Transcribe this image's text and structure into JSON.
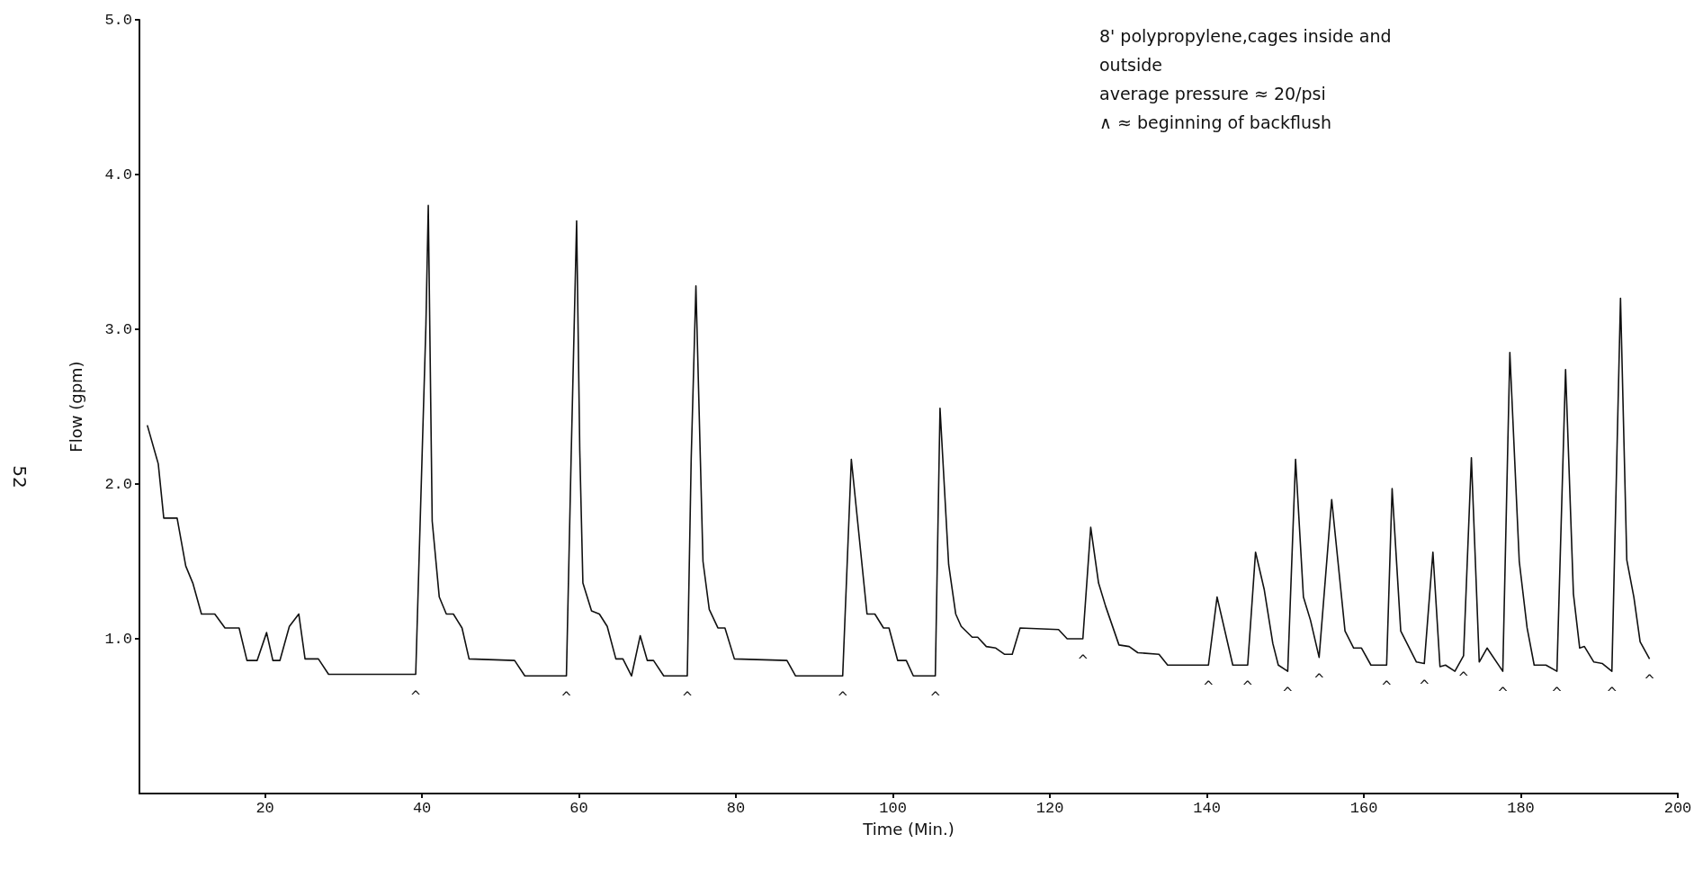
{
  "chart_data": {
    "type": "line",
    "xlabel": "Time (Min.)",
    "ylabel": "Flow (gpm)",
    "xlim": [
      4,
      200
    ],
    "xticks": [
      20,
      40,
      60,
      80,
      100,
      120,
      140,
      160,
      180,
      200
    ],
    "ylim": [
      0,
      5
    ],
    "yticks": [
      {
        "value": 1,
        "label": "1.0"
      },
      {
        "value": 2,
        "label": "2.0"
      },
      {
        "value": 3,
        "label": "3.0"
      },
      {
        "value": 4,
        "label": "4.0"
      },
      {
        "value": 5,
        "label": "5.0"
      }
    ],
    "grid": false,
    "marker": "none",
    "line_style": "solid",
    "series": [
      {
        "color": "#111111",
        "x": [
          5.0,
          6.4,
          7.1,
          8.8,
          9.9,
          10.8,
          11.9,
          13.6,
          14.9,
          16.7,
          17.7,
          19.0,
          20.2,
          21.0,
          21.9,
          23.1,
          24.3,
          25.1,
          26.8,
          28.1,
          39.2,
          40.5,
          40.8,
          41.3,
          42.2,
          43.1,
          44.0,
          45.1,
          46.0,
          51.8,
          53.1,
          58.4,
          59.0,
          59.7,
          60.1,
          60.5,
          61.6,
          62.6,
          63.6,
          64.7,
          65.6,
          66.7,
          67.8,
          68.7,
          69.5,
          70.8,
          73.8,
          74.3,
          74.9,
          75.8,
          76.6,
          77.7,
          78.6,
          79.8,
          86.5,
          87.6,
          93.6,
          94.7,
          96.7,
          97.7,
          98.8,
          99.5,
          100.6,
          101.7,
          102.6,
          105.4,
          106.0,
          107.1,
          108.0,
          108.7,
          110.1,
          110.8,
          111.9,
          113.1,
          114.2,
          115.2,
          116.2,
          121.1,
          122.2,
          124.2,
          125.2,
          126.2,
          127.1,
          128.8,
          130.1,
          131.2,
          133.9,
          135.0,
          140.2,
          141.3,
          143.3,
          145.2,
          146.2,
          147.3,
          148.4,
          149.1,
          150.3,
          151.3,
          152.3,
          153.2,
          154.3,
          155.9,
          156.7,
          157.6,
          158.7,
          159.7,
          160.9,
          162.9,
          163.6,
          164.7,
          166.7,
          167.7,
          168.8,
          169.7,
          170.4,
          171.6,
          172.7,
          173.7,
          174.7,
          175.7,
          177.7,
          178.6,
          179.8,
          180.8,
          181.7,
          183.2,
          184.6,
          185.7,
          186.7,
          187.5,
          188.1,
          189.3,
          190.4,
          191.6,
          192.7,
          193.5,
          194.4,
          195.2,
          196.4
        ],
        "values": [
          2.38,
          2.13,
          1.78,
          1.78,
          1.47,
          1.36,
          1.16,
          1.16,
          1.07,
          1.07,
          0.86,
          0.86,
          1.04,
          0.86,
          0.86,
          1.08,
          1.16,
          0.87,
          0.87,
          0.77,
          0.77,
          3.03,
          3.8,
          1.76,
          1.27,
          1.16,
          1.16,
          1.07,
          0.87,
          0.86,
          0.76,
          0.76,
          2.17,
          3.7,
          2.22,
          1.36,
          1.18,
          1.16,
          1.08,
          0.87,
          0.87,
          0.76,
          1.02,
          0.86,
          0.86,
          0.76,
          0.76,
          2.17,
          3.28,
          1.5,
          1.19,
          1.07,
          1.07,
          0.87,
          0.86,
          0.76,
          0.76,
          2.16,
          1.16,
          1.16,
          1.07,
          1.07,
          0.86,
          0.86,
          0.76,
          0.76,
          2.49,
          1.48,
          1.16,
          1.08,
          1.01,
          1.01,
          0.95,
          0.94,
          0.9,
          0.9,
          1.07,
          1.06,
          1.0,
          1.0,
          1.72,
          1.36,
          1.21,
          0.96,
          0.95,
          0.91,
          0.9,
          0.83,
          0.83,
          1.27,
          0.83,
          0.83,
          1.56,
          1.32,
          0.97,
          0.83,
          0.79,
          2.16,
          1.27,
          1.12,
          0.88,
          1.9,
          1.5,
          1.05,
          0.94,
          0.94,
          0.83,
          0.83,
          1.97,
          1.05,
          0.85,
          0.84,
          1.56,
          0.82,
          0.83,
          0.79,
          0.89,
          2.17,
          0.85,
          0.94,
          0.79,
          2.85,
          1.5,
          1.07,
          0.83,
          0.83,
          0.79,
          2.74,
          1.29,
          0.94,
          0.95,
          0.85,
          0.84,
          0.79,
          3.2,
          1.51,
          1.27,
          0.98,
          0.87
        ]
      }
    ],
    "annotations": [
      "8' polypropylene,cages inside and outside",
      "average pressure ≈ 20/psi",
      "∧ ≈ beginning of backflush",
      {
        "text": "^",
        "x": 39.2,
        "y": 0.77
      },
      {
        "text": "^",
        "x": 58.4,
        "y": 0.76
      },
      {
        "text": "^",
        "x": 73.8,
        "y": 0.76
      },
      {
        "text": "^",
        "x": 93.6,
        "y": 0.76
      },
      {
        "text": "^",
        "x": 105.4,
        "y": 0.76
      },
      {
        "text": "^",
        "x": 124.2,
        "y": 1.0
      },
      {
        "text": "^",
        "x": 140.2,
        "y": 0.83
      },
      {
        "text": "^",
        "x": 145.2,
        "y": 0.83
      },
      {
        "text": "^",
        "x": 150.3,
        "y": 0.79
      },
      {
        "text": "^",
        "x": 154.3,
        "y": 0.88
      },
      {
        "text": "^",
        "x": 162.9,
        "y": 0.83
      },
      {
        "text": "^",
        "x": 167.7,
        "y": 0.84
      },
      {
        "text": "^",
        "x": 172.7,
        "y": 0.89
      },
      {
        "text": "^",
        "x": 177.7,
        "y": 0.79
      },
      {
        "text": "^",
        "x": 184.6,
        "y": 0.79
      },
      {
        "text": "^",
        "x": 191.6,
        "y": 0.79
      },
      {
        "text": "^",
        "x": 196.4,
        "y": 0.87
      },
      "52"
    ]
  }
}
